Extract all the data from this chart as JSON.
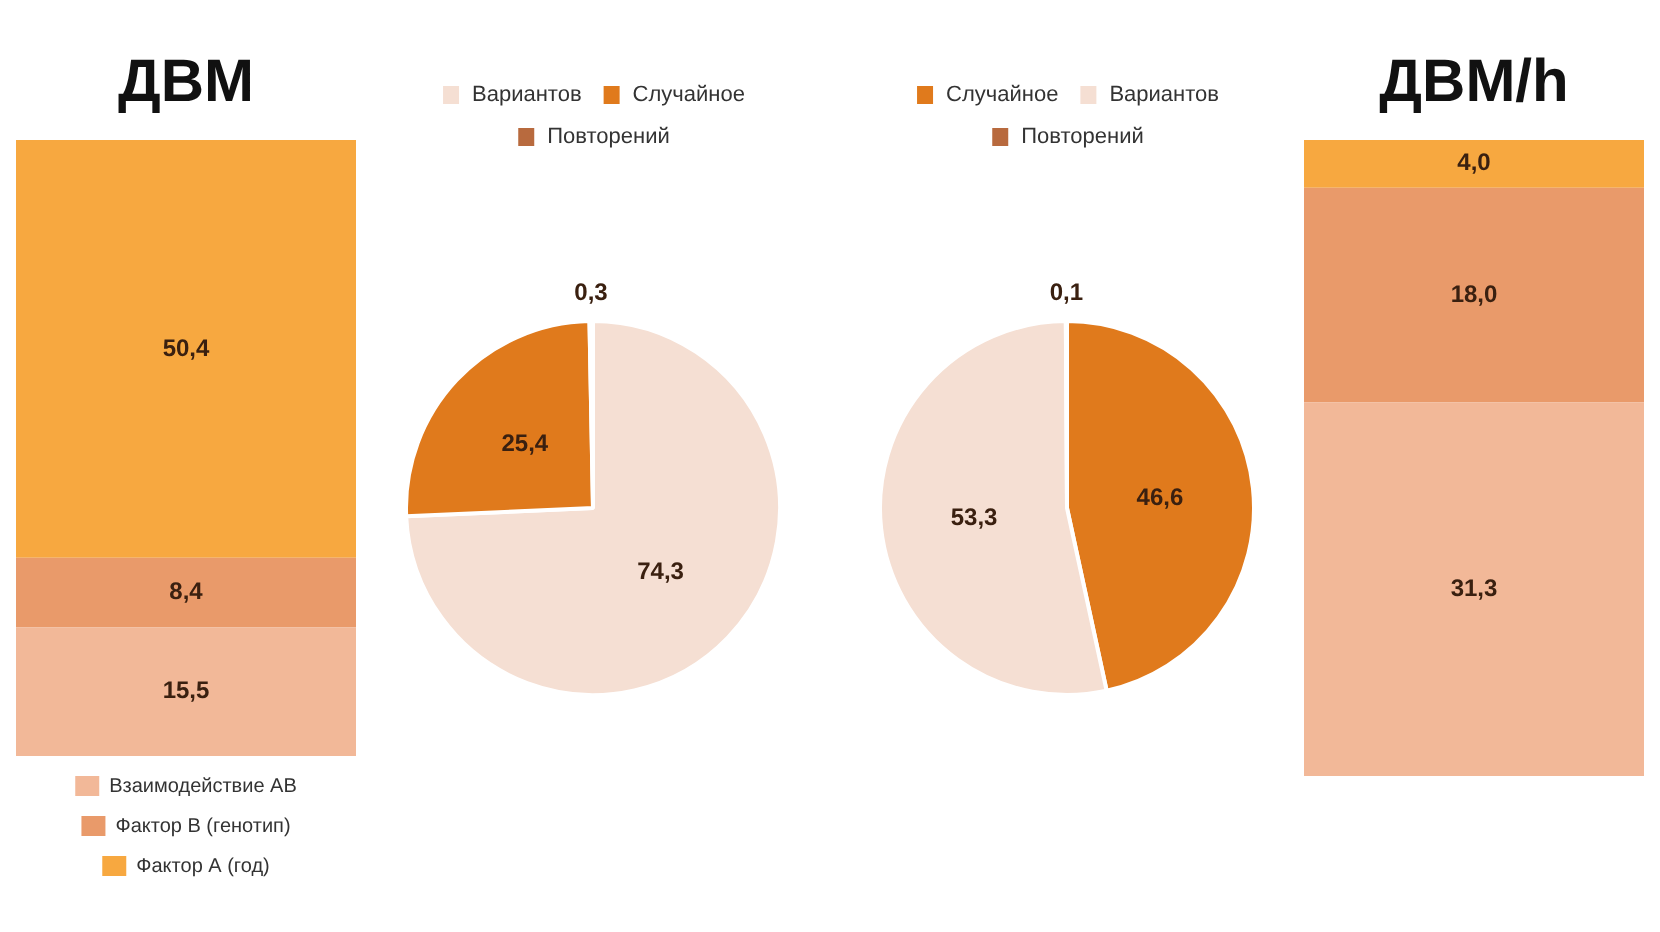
{
  "chart_data": [
    {
      "type": "bar",
      "title": "ДВМ",
      "stacked": true,
      "categories": [
        null
      ],
      "legend": "bottom",
      "series": [
        {
          "name": "Взаимодействие АВ",
          "color": "#f2b898",
          "values": [
            15.5
          ],
          "value_labels": [
            "15,5"
          ]
        },
        {
          "name": "Фактор В (генотип)",
          "color": "#e99a6a",
          "values": [
            8.4
          ],
          "value_labels": [
            "8,4"
          ]
        },
        {
          "name": "Фактор А (год)",
          "color": "#f7a840",
          "values": [
            50.4
          ],
          "value_labels": [
            "50,4"
          ]
        }
      ]
    },
    {
      "type": "pie",
      "categories": [
        "Вариантов",
        "Случайное",
        "Повторений"
      ],
      "values": [
        74.3,
        25.4,
        0.3
      ],
      "value_labels": [
        "74,3",
        "25,4",
        "0,3"
      ],
      "colors": [
        "#f5dfd3",
        "#e07a1c",
        "#b86a3e"
      ],
      "legend": "top"
    },
    {
      "type": "pie",
      "categories": [
        "Случайное",
        "Вариантов",
        "Повторений"
      ],
      "values": [
        46.6,
        53.3,
        0.1
      ],
      "value_labels": [
        "46,6",
        "53,3",
        "0,1"
      ],
      "colors": [
        "#e07a1c",
        "#f5dfd3",
        "#b86a3e"
      ],
      "legend": "top"
    },
    {
      "type": "bar",
      "title": "ДВМ/h",
      "stacked": true,
      "categories": [
        null
      ],
      "series": [
        {
          "color": "#f2b898",
          "values": [
            31.3
          ],
          "value_labels": [
            "31,3"
          ]
        },
        {
          "color": "#e99a6a",
          "values": [
            18.0
          ],
          "value_labels": [
            "18,0"
          ]
        },
        {
          "color": "#f7a840",
          "values": [
            4.0
          ],
          "value_labels": [
            "4,0"
          ]
        }
      ]
    }
  ]
}
